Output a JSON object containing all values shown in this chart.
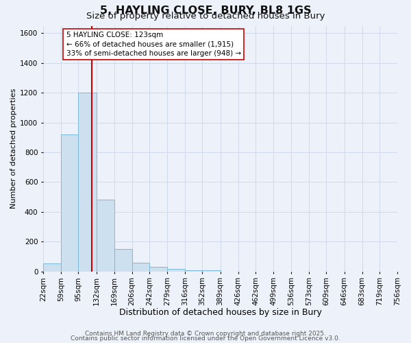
{
  "title": "5, HAYLING CLOSE, BURY, BL8 1GS",
  "subtitle": "Size of property relative to detached houses in Bury",
  "xlabel": "Distribution of detached houses by size in Bury",
  "ylabel": "Number of detached properties",
  "bin_edges": [
    22,
    59,
    95,
    132,
    169,
    206,
    242,
    279,
    316,
    352,
    389,
    426,
    462,
    499,
    536,
    573,
    609,
    646,
    683,
    719,
    756
  ],
  "bar_heights": [
    55,
    920,
    1200,
    480,
    150,
    60,
    30,
    15,
    5,
    5,
    0,
    0,
    0,
    0,
    0,
    0,
    0,
    0,
    0,
    0
  ],
  "bar_color": "#cde0f0",
  "bar_edge_color": "#7ab8d9",
  "grid_color": "#d0daea",
  "background_color": "#edf1f9",
  "property_line_x": 123,
  "property_line_color": "#cc0000",
  "annotation_title": "5 HAYLING CLOSE: 123sqm",
  "annotation_line1": "← 66% of detached houses are smaller (1,915)",
  "annotation_line2": "33% of semi-detached houses are larger (948) →",
  "annotation_box_color": "#ffffff",
  "annotation_box_edge": "#cc0000",
  "ylim_max": 1650,
  "yticks": [
    0,
    200,
    400,
    600,
    800,
    1000,
    1200,
    1400,
    1600
  ],
  "footer1": "Contains HM Land Registry data © Crown copyright and database right 2025.",
  "footer2": "Contains public sector information licensed under the Open Government Licence v3.0.",
  "title_fontsize": 11.5,
  "subtitle_fontsize": 9.5,
  "xlabel_fontsize": 9,
  "ylabel_fontsize": 8,
  "tick_fontsize": 7.5,
  "ann_fontsize": 7.5,
  "footer_fontsize": 6.5
}
